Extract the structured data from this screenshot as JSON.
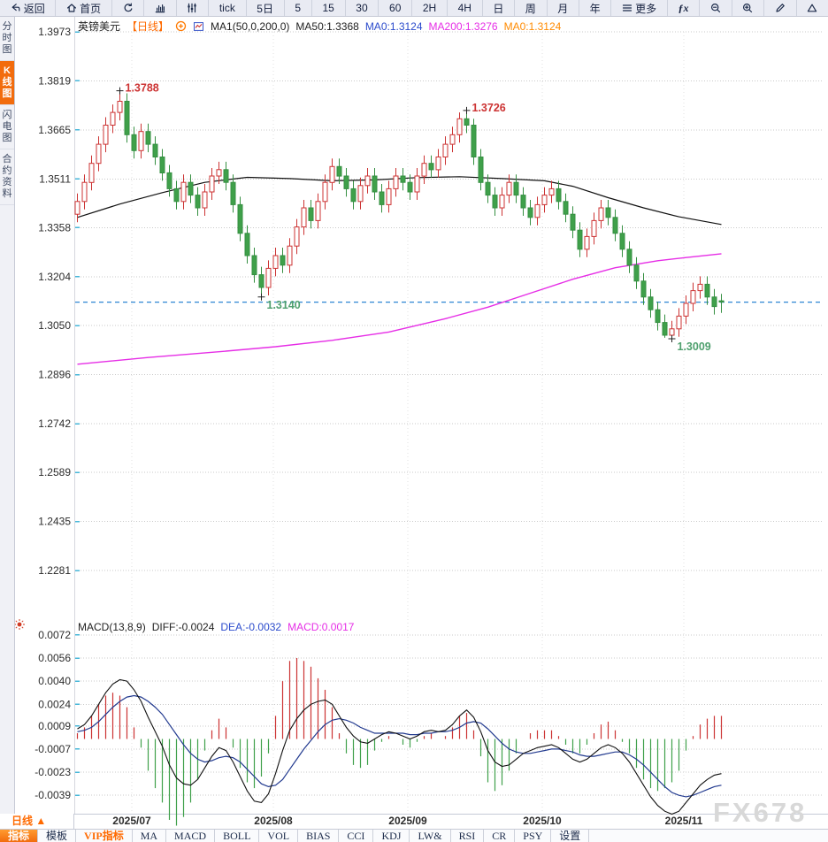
{
  "app": {
    "watermark": "FX678"
  },
  "toolbar": {
    "items": [
      {
        "id": "back",
        "label": "返回",
        "icon": "back"
      },
      {
        "id": "home",
        "label": "首页",
        "icon": "home"
      },
      {
        "id": "refresh",
        "icon": "refresh"
      },
      {
        "id": "chart-type",
        "icon": "chart"
      },
      {
        "id": "indicator-panel",
        "icon": "sliders"
      },
      {
        "id": "tick",
        "label": "tick"
      },
      {
        "id": "5d",
        "label": "5日"
      },
      {
        "id": "m5",
        "label": "5"
      },
      {
        "id": "m15",
        "label": "15"
      },
      {
        "id": "m30",
        "label": "30"
      },
      {
        "id": "m60",
        "label": "60"
      },
      {
        "id": "h2",
        "label": "2H"
      },
      {
        "id": "h4",
        "label": "4H"
      },
      {
        "id": "day",
        "label": "日"
      },
      {
        "id": "week",
        "label": "周"
      },
      {
        "id": "month",
        "label": "月"
      },
      {
        "id": "year",
        "label": "年"
      },
      {
        "id": "more",
        "label": "更多",
        "icon": "menu"
      },
      {
        "id": "fx",
        "label": "ƒx"
      },
      {
        "id": "zoom-out",
        "icon": "zoomout"
      },
      {
        "id": "zoom-in",
        "icon": "zoomin"
      },
      {
        "id": "draw",
        "icon": "pencil"
      },
      {
        "id": "shape",
        "icon": "triangle"
      }
    ]
  },
  "sidebar": {
    "items": [
      {
        "label": "分时图",
        "active": false
      },
      {
        "label": "K线图",
        "active": true
      },
      {
        "label": "闪电图",
        "active": false
      },
      {
        "label": "合约资料",
        "active": false
      }
    ]
  },
  "price_header": {
    "segments": [
      {
        "text": "英镑美元",
        "color": "#222222"
      },
      {
        "text": "【日线】",
        "color": "#ff6a00"
      },
      {
        "icon": "pluscircle"
      },
      {
        "icon": "minichart"
      },
      {
        "text": "MA1(50,0,200,0)",
        "color": "#222222"
      },
      {
        "text": "MA50:1.3368",
        "color": "#222222"
      },
      {
        "text": "MA0:1.3124",
        "color": "#2b4bcc"
      },
      {
        "text": "MA200:1.3276",
        "color": "#e62ee6"
      },
      {
        "text": "MA0:1.3124",
        "color": "#ff8a00"
      }
    ]
  },
  "macd_header": {
    "segments": [
      {
        "text": "MACD(13,8,9)",
        "color": "#222222"
      },
      {
        "text": "DIFF:-0.0024",
        "color": "#222222"
      },
      {
        "text": "DEA:-0.0032",
        "color": "#2b4bcc"
      },
      {
        "text": "MACD:0.0017",
        "color": "#e62ee6"
      }
    ]
  },
  "period_box": {
    "label": "日线",
    "arrow": "▲"
  },
  "bottom_tabs": {
    "items": [
      {
        "label": "指标",
        "style": "active"
      },
      {
        "label": "模板",
        "style": ""
      },
      {
        "label": "VIP指标",
        "style": "vip"
      },
      {
        "label": "MA",
        "style": ""
      },
      {
        "label": "MACD",
        "style": ""
      },
      {
        "label": "BOLL",
        "style": ""
      },
      {
        "label": "VOL",
        "style": ""
      },
      {
        "label": "BIAS",
        "style": ""
      },
      {
        "label": "CCI",
        "style": ""
      },
      {
        "label": "KDJ",
        "style": ""
      },
      {
        "label": "LW&",
        "style": ""
      },
      {
        "label": "RSI",
        "style": ""
      },
      {
        "label": "CR",
        "style": ""
      },
      {
        "label": "PSY",
        "style": ""
      },
      {
        "label": "设置",
        "style": ""
      }
    ]
  },
  "chart_data": {
    "type": "candlestick+macd",
    "symbol": "英镑美元",
    "period": "日线",
    "price_axis": {
      "ticks": [
        1.3973,
        1.3819,
        1.3665,
        1.3511,
        1.3358,
        1.3204,
        1.305,
        1.2896,
        1.2742,
        1.2589,
        1.2435,
        1.2281
      ]
    },
    "x_axis": {
      "labels": [
        {
          "text": "2025/07",
          "index": 8
        },
        {
          "text": "2025/08",
          "index": 28
        },
        {
          "text": "2025/09",
          "index": 47
        },
        {
          "text": "2025/10",
          "index": 66
        },
        {
          "text": "2025/11",
          "index": 86
        }
      ]
    },
    "current_price": 1.3124,
    "annotations": [
      {
        "text": "1.3788",
        "index": 6,
        "price": 1.3788,
        "kind": "high"
      },
      {
        "text": "1.3726",
        "index": 55,
        "price": 1.3726,
        "kind": "high"
      },
      {
        "text": "1.3140",
        "index": 26,
        "price": 1.314,
        "kind": "low"
      },
      {
        "text": "1.3009",
        "index": 84,
        "price": 1.3009,
        "kind": "low"
      }
    ],
    "candles": [
      [
        1.34,
        1.3465,
        1.3375,
        1.344
      ],
      [
        1.344,
        1.3525,
        1.3415,
        1.35
      ],
      [
        1.35,
        1.3585,
        1.3475,
        1.356
      ],
      [
        1.356,
        1.3645,
        1.3535,
        1.362
      ],
      [
        1.362,
        1.3705,
        1.3595,
        1.368
      ],
      [
        1.368,
        1.3745,
        1.3655,
        1.372
      ],
      [
        1.372,
        1.3788,
        1.3695,
        1.3755
      ],
      [
        1.3755,
        1.378,
        1.3625,
        1.365
      ],
      [
        1.365,
        1.3675,
        1.3575,
        1.36
      ],
      [
        1.36,
        1.3685,
        1.3575,
        1.366
      ],
      [
        1.366,
        1.3685,
        1.3595,
        1.362
      ],
      [
        1.362,
        1.3645,
        1.3555,
        1.358
      ],
      [
        1.358,
        1.3605,
        1.3505,
        1.353
      ],
      [
        1.353,
        1.3555,
        1.3455,
        1.348
      ],
      [
        1.348,
        1.3505,
        1.3415,
        1.344
      ],
      [
        1.344,
        1.3525,
        1.3415,
        1.35
      ],
      [
        1.35,
        1.3525,
        1.3435,
        1.346
      ],
      [
        1.346,
        1.3485,
        1.3395,
        1.342
      ],
      [
        1.342,
        1.3495,
        1.3395,
        1.347
      ],
      [
        1.347,
        1.3545,
        1.3445,
        1.352
      ],
      [
        1.352,
        1.3565,
        1.3495,
        1.354
      ],
      [
        1.354,
        1.3565,
        1.3475,
        1.35
      ],
      [
        1.35,
        1.3525,
        1.3405,
        1.343
      ],
      [
        1.343,
        1.3455,
        1.3315,
        1.334
      ],
      [
        1.334,
        1.3365,
        1.3245,
        1.327
      ],
      [
        1.327,
        1.3295,
        1.3185,
        1.321
      ],
      [
        1.321,
        1.3235,
        1.314,
        1.317
      ],
      [
        1.317,
        1.3255,
        1.3145,
        1.323
      ],
      [
        1.323,
        1.3295,
        1.3205,
        1.327
      ],
      [
        1.327,
        1.3295,
        1.3215,
        1.324
      ],
      [
        1.324,
        1.3325,
        1.3215,
        1.33
      ],
      [
        1.33,
        1.3385,
        1.3275,
        1.336
      ],
      [
        1.336,
        1.3445,
        1.3335,
        1.342
      ],
      [
        1.342,
        1.3445,
        1.3355,
        1.338
      ],
      [
        1.338,
        1.3465,
        1.3355,
        1.344
      ],
      [
        1.344,
        1.3525,
        1.3415,
        1.35
      ],
      [
        1.35,
        1.3575,
        1.3475,
        1.355
      ],
      [
        1.355,
        1.3575,
        1.3495,
        1.352
      ],
      [
        1.352,
        1.3545,
        1.3455,
        1.348
      ],
      [
        1.348,
        1.3505,
        1.3415,
        1.344
      ],
      [
        1.344,
        1.3515,
        1.3415,
        1.349
      ],
      [
        1.349,
        1.3545,
        1.3465,
        1.352
      ],
      [
        1.352,
        1.3545,
        1.3445,
        1.347
      ],
      [
        1.347,
        1.3495,
        1.3405,
        1.343
      ],
      [
        1.343,
        1.3505,
        1.3405,
        1.348
      ],
      [
        1.348,
        1.3545,
        1.3455,
        1.352
      ],
      [
        1.352,
        1.3545,
        1.3475,
        1.35
      ],
      [
        1.35,
        1.3525,
        1.3445,
        1.347
      ],
      [
        1.347,
        1.3545,
        1.3445,
        1.352
      ],
      [
        1.352,
        1.3585,
        1.3495,
        1.356
      ],
      [
        1.356,
        1.3585,
        1.3515,
        1.354
      ],
      [
        1.354,
        1.3605,
        1.3515,
        1.358
      ],
      [
        1.358,
        1.3645,
        1.3555,
        1.362
      ],
      [
        1.362,
        1.3675,
        1.3595,
        1.365
      ],
      [
        1.365,
        1.372,
        1.3625,
        1.37
      ],
      [
        1.37,
        1.3726,
        1.3655,
        1.368
      ],
      [
        1.368,
        1.37,
        1.3555,
        1.358
      ],
      [
        1.358,
        1.3605,
        1.3475,
        1.35
      ],
      [
        1.35,
        1.3525,
        1.3435,
        1.346
      ],
      [
        1.346,
        1.3485,
        1.3395,
        1.342
      ],
      [
        1.342,
        1.3485,
        1.3395,
        1.346
      ],
      [
        1.346,
        1.3525,
        1.3435,
        1.35
      ],
      [
        1.35,
        1.3525,
        1.3435,
        1.346
      ],
      [
        1.346,
        1.3485,
        1.3395,
        1.342
      ],
      [
        1.342,
        1.3445,
        1.3365,
        1.339
      ],
      [
        1.339,
        1.3455,
        1.3365,
        1.343
      ],
      [
        1.343,
        1.3485,
        1.3405,
        1.346
      ],
      [
        1.346,
        1.3505,
        1.3435,
        1.348
      ],
      [
        1.348,
        1.3505,
        1.3415,
        1.344
      ],
      [
        1.344,
        1.3465,
        1.3375,
        1.34
      ],
      [
        1.34,
        1.3425,
        1.3325,
        1.335
      ],
      [
        1.335,
        1.3375,
        1.3265,
        1.329
      ],
      [
        1.329,
        1.3355,
        1.3265,
        1.333
      ],
      [
        1.333,
        1.3405,
        1.3305,
        1.338
      ],
      [
        1.338,
        1.3445,
        1.3355,
        1.342
      ],
      [
        1.342,
        1.3445,
        1.3365,
        1.339
      ],
      [
        1.339,
        1.3415,
        1.3315,
        1.334
      ],
      [
        1.334,
        1.3365,
        1.3265,
        1.329
      ],
      [
        1.329,
        1.3315,
        1.3215,
        1.324
      ],
      [
        1.324,
        1.3265,
        1.3165,
        1.319
      ],
      [
        1.319,
        1.3215,
        1.3115,
        1.314
      ],
      [
        1.314,
        1.3165,
        1.3075,
        1.31
      ],
      [
        1.31,
        1.3125,
        1.3035,
        1.306
      ],
      [
        1.306,
        1.3085,
        1.3012,
        1.302
      ],
      [
        1.302,
        1.3065,
        1.3009,
        1.304
      ],
      [
        1.304,
        1.3105,
        1.3015,
        1.308
      ],
      [
        1.308,
        1.3145,
        1.3055,
        1.312
      ],
      [
        1.312,
        1.3185,
        1.3095,
        1.316
      ],
      [
        1.316,
        1.3205,
        1.3135,
        1.318
      ],
      [
        1.318,
        1.3205,
        1.3115,
        1.314
      ],
      [
        1.314,
        1.3165,
        1.3085,
        1.311
      ],
      [
        1.3128,
        1.315,
        1.309,
        1.3124
      ]
    ],
    "ma50_points": [
      [
        0,
        1.339
      ],
      [
        6,
        1.3432
      ],
      [
        12,
        1.3468
      ],
      [
        18,
        1.35
      ],
      [
        24,
        1.3516
      ],
      [
        30,
        1.3512
      ],
      [
        36,
        1.3505
      ],
      [
        42,
        1.3508
      ],
      [
        48,
        1.3515
      ],
      [
        54,
        1.3518
      ],
      [
        60,
        1.3512
      ],
      [
        66,
        1.3505
      ],
      [
        70,
        1.3488
      ],
      [
        75,
        1.3452
      ],
      [
        80,
        1.342
      ],
      [
        85,
        1.3392
      ],
      [
        91,
        1.3368
      ]
    ],
    "ma200_points": [
      [
        0,
        1.2929
      ],
      [
        10,
        1.295
      ],
      [
        20,
        1.2968
      ],
      [
        28,
        1.2984
      ],
      [
        36,
        1.3004
      ],
      [
        44,
        1.303
      ],
      [
        52,
        1.3072
      ],
      [
        58,
        1.3108
      ],
      [
        64,
        1.3152
      ],
      [
        70,
        1.3196
      ],
      [
        76,
        1.3232
      ],
      [
        82,
        1.3254
      ],
      [
        86,
        1.3264
      ],
      [
        91,
        1.3276
      ]
    ],
    "macd": {
      "params": "13,8,9",
      "diff_last": -0.0024,
      "dea_last": -0.0032,
      "macd_last": 0.0017,
      "axis_ticks": [
        0.0072,
        0.0056,
        0.004,
        0.0024,
        0.0009,
        -0.0007,
        -0.0023,
        -0.0039
      ],
      "unit": 0.0001,
      "diff": [
        7,
        10,
        16,
        24,
        32,
        38,
        41,
        40,
        34,
        26,
        15,
        5,
        -5,
        -18,
        -27,
        -31,
        -32,
        -28,
        -20,
        -12,
        -6,
        -8,
        -16,
        -26,
        -36,
        -43,
        -44,
        -38,
        -24,
        -8,
        6,
        14,
        20,
        24,
        26,
        27,
        24,
        16,
        8,
        2,
        -2,
        -3,
        0,
        3,
        5,
        4,
        2,
        0,
        2,
        5,
        6,
        5,
        6,
        10,
        16,
        20,
        15,
        5,
        -8,
        -16,
        -19,
        -18,
        -14,
        -10,
        -8,
        -6,
        -5,
        -4,
        -6,
        -10,
        -14,
        -16,
        -14,
        -10,
        -6,
        -4,
        -6,
        -10,
        -16,
        -24,
        -32,
        -40,
        -46,
        -50,
        -52,
        -50,
        -44,
        -38,
        -32,
        -28,
        -25,
        -24
      ],
      "dea": [
        5,
        6,
        8,
        12,
        17,
        22,
        26,
        29,
        30,
        29,
        26,
        22,
        17,
        10,
        3,
        -4,
        -10,
        -14,
        -16,
        -15,
        -13,
        -12,
        -13,
        -16,
        -21,
        -26,
        -31,
        -33,
        -32,
        -28,
        -21,
        -14,
        -7,
        -1,
        5,
        10,
        13,
        14,
        13,
        11,
        8,
        6,
        4,
        4,
        4,
        4,
        4,
        3,
        3,
        4,
        4,
        5,
        5,
        6,
        8,
        11,
        12,
        11,
        7,
        2,
        -3,
        -7,
        -9,
        -10,
        -10,
        -9,
        -8,
        -7,
        -7,
        -8,
        -9,
        -11,
        -12,
        -12,
        -11,
        -10,
        -9,
        -9,
        -11,
        -14,
        -18,
        -23,
        -28,
        -33,
        -37,
        -39,
        -40,
        -39,
        -37,
        -35,
        -33,
        -32
      ],
      "hist": [
        4,
        8,
        16,
        24,
        30,
        32,
        30,
        22,
        8,
        -6,
        -22,
        -34,
        -44,
        -56,
        -60,
        -54,
        -44,
        -28,
        -8,
        6,
        14,
        8,
        -6,
        -20,
        -30,
        -34,
        -26,
        -10,
        16,
        40,
        54,
        56,
        54,
        50,
        42,
        34,
        22,
        4,
        -10,
        -18,
        -20,
        -18,
        -8,
        -2,
        2,
        0,
        -4,
        -6,
        -2,
        2,
        4,
        0,
        2,
        8,
        16,
        18,
        6,
        -12,
        -30,
        -36,
        -32,
        -22,
        -10,
        0,
        4,
        6,
        6,
        6,
        2,
        -4,
        -10,
        -10,
        -4,
        4,
        10,
        12,
        6,
        -2,
        -10,
        -20,
        -28,
        -34,
        -36,
        -34,
        -30,
        -22,
        -8,
        2,
        10,
        14,
        16,
        16
      ]
    },
    "colors": {
      "up": "#cc3333",
      "down": "#3fa04a",
      "down_stroke": "#358f41",
      "ma50": "#111111",
      "ma200": "#e62ee6",
      "diff": "#111111",
      "dea": "#223a8f",
      "current": "#2e86d2",
      "high_label": "#cc3333",
      "low_label": "#4fa06e",
      "grid": "#c9c9c9",
      "axis_tick": "#45b6d8",
      "watermark": "#d8d8d8"
    }
  }
}
